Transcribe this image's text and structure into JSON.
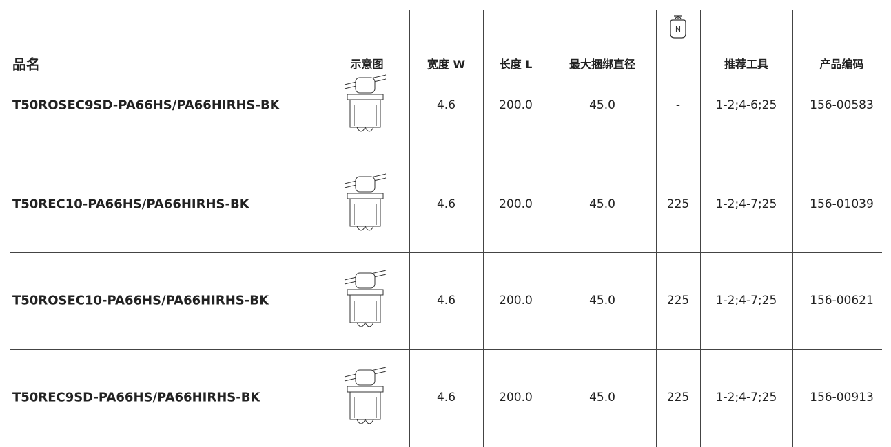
{
  "header": {
    "name": "品名",
    "diagram": "示意图",
    "width": "宽度 W",
    "length": "长度 L",
    "max_diameter": "最大捆绑直径",
    "force_symbol": "N",
    "tools": "推荐工具",
    "code": "产品编码"
  },
  "rows": [
    {
      "name": "T50ROSEC9SD-PA66HS/PA66HIRHS-BK",
      "width": "4.6",
      "length": "200.0",
      "diameter": "45.0",
      "force": "-",
      "tools": "1-2;4-6;25",
      "code": "156-00583"
    },
    {
      "name": "T50REC10-PA66HS/PA66HIRHS-BK",
      "width": "4.6",
      "length": "200.0",
      "diameter": "45.0",
      "force": "225",
      "tools": "1-2;4-7;25",
      "code": "156-01039"
    },
    {
      "name": "T50ROSEC10-PA66HS/PA66HIRHS-BK",
      "width": "4.6",
      "length": "200.0",
      "diameter": "45.0",
      "force": "225",
      "tools": "1-2;4-7;25",
      "code": "156-00621"
    },
    {
      "name": "T50REC9SD-PA66HS/PA66HIRHS-BK",
      "width": "4.6",
      "length": "200.0",
      "diameter": "45.0",
      "force": "225",
      "tools": "1-2;4-7;25",
      "code": "156-00913"
    }
  ]
}
